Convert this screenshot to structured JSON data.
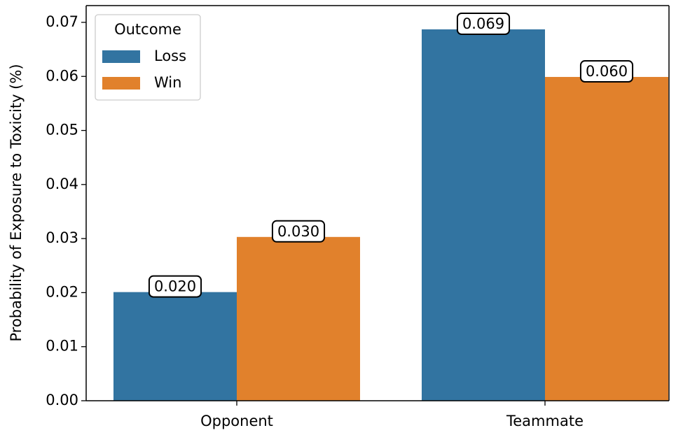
{
  "chart_data": {
    "type": "bar",
    "ylabel": "Probability of Exposure to Toxicity (%)",
    "categories": [
      "Opponent",
      "Teammate"
    ],
    "series": [
      {
        "name": "Loss",
        "color": "#3274a1",
        "values": [
          0.0201,
          0.0687
        ],
        "value_labels": [
          "0.020",
          "0.069"
        ]
      },
      {
        "name": "Win",
        "color": "#e1812c",
        "values": [
          0.0303,
          0.0599
        ],
        "value_labels": [
          "0.030",
          "0.060"
        ]
      }
    ],
    "legend_title": "Outcome",
    "legend": "upper left",
    "ylim": [
      0,
      0.0731
    ],
    "yticks": [
      {
        "value": 0,
        "label": "0.00"
      },
      {
        "value": 0.01,
        "label": "0.01"
      },
      {
        "value": 0.02,
        "label": "0.02"
      },
      {
        "value": 0.03,
        "label": "0.03"
      },
      {
        "value": 0.04,
        "label": "0.04"
      },
      {
        "value": 0.05,
        "label": "0.05"
      },
      {
        "value": 0.06,
        "label": "0.06"
      },
      {
        "value": 0.07,
        "label": "0.07"
      }
    ],
    "grid": false
  }
}
